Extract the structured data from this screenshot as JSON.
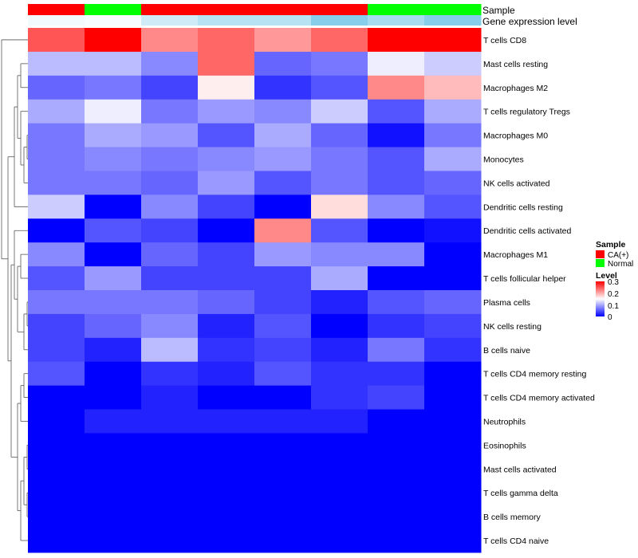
{
  "chart_data": {
    "type": "heatmap",
    "title": "",
    "annotation_labels": {
      "sample": "Sample",
      "gene": "Gene expression level"
    },
    "columns": [
      {
        "sample": "CA(+)",
        "gene_level": 0.03
      },
      {
        "sample": "Normal",
        "gene_level": 0.02
      },
      {
        "sample": "CA(+)",
        "gene_level": 0.12
      },
      {
        "sample": "CA(+)",
        "gene_level": 0.18
      },
      {
        "sample": "CA(+)",
        "gene_level": 0.18
      },
      {
        "sample": "CA(+)",
        "gene_level": 0.3
      },
      {
        "sample": "Normal",
        "gene_level": 0.22
      },
      {
        "sample": "Normal",
        "gene_level": 0.3
      }
    ],
    "rows": [
      {
        "name": "T cells CD8",
        "values": [
          0.25,
          0.3,
          0.22,
          0.24,
          0.21,
          0.24,
          0.3,
          0.3
        ]
      },
      {
        "name": "Mast cells resting",
        "values": [
          0.11,
          0.11,
          0.08,
          0.24,
          0.06,
          0.07,
          0.14,
          0.12
        ]
      },
      {
        "name": "Macrophages M2",
        "values": [
          0.06,
          0.07,
          0.04,
          0.16,
          0.03,
          0.05,
          0.22,
          0.19
        ]
      },
      {
        "name": "T cells regulatory  Tregs",
        "values": [
          0.1,
          0.14,
          0.07,
          0.09,
          0.08,
          0.12,
          0.05,
          0.1
        ]
      },
      {
        "name": "Macrophages M0",
        "values": [
          0.07,
          0.1,
          0.09,
          0.05,
          0.1,
          0.06,
          0.01,
          0.07
        ]
      },
      {
        "name": "Monocytes",
        "values": [
          0.07,
          0.08,
          0.07,
          0.08,
          0.09,
          0.07,
          0.05,
          0.1
        ]
      },
      {
        "name": "NK cells activated",
        "values": [
          0.07,
          0.07,
          0.06,
          0.09,
          0.05,
          0.07,
          0.05,
          0.06
        ]
      },
      {
        "name": "Dendritic cells resting",
        "values": [
          0.12,
          0.0,
          0.08,
          0.04,
          0.0,
          0.17,
          0.08,
          0.05
        ]
      },
      {
        "name": "Dendritic cells activated",
        "values": [
          0.0,
          0.05,
          0.04,
          0.0,
          0.22,
          0.05,
          0.0,
          0.01
        ]
      },
      {
        "name": "Macrophages M1",
        "values": [
          0.08,
          0.0,
          0.06,
          0.04,
          0.09,
          0.08,
          0.08,
          0.0
        ]
      },
      {
        "name": "T cells follicular helper",
        "values": [
          0.05,
          0.09,
          0.04,
          0.04,
          0.04,
          0.1,
          0.0,
          0.0
        ]
      },
      {
        "name": "Plasma cells",
        "values": [
          0.07,
          0.07,
          0.07,
          0.06,
          0.04,
          0.02,
          0.05,
          0.06
        ]
      },
      {
        "name": "NK cells resting",
        "values": [
          0.04,
          0.06,
          0.08,
          0.02,
          0.05,
          0.0,
          0.03,
          0.04
        ]
      },
      {
        "name": "B cells naive",
        "values": [
          0.04,
          0.02,
          0.11,
          0.03,
          0.04,
          0.02,
          0.07,
          0.03
        ]
      },
      {
        "name": "T cells CD4 memory resting",
        "values": [
          0.05,
          0.0,
          0.03,
          0.02,
          0.05,
          0.03,
          0.03,
          0.0
        ]
      },
      {
        "name": "T cells CD4 memory activated",
        "values": [
          0.0,
          0.0,
          0.02,
          0.0,
          0.0,
          0.03,
          0.04,
          0.0
        ]
      },
      {
        "name": "Neutrophils",
        "values": [
          0.0,
          0.02,
          0.02,
          0.02,
          0.02,
          0.02,
          0.0,
          0.0
        ]
      },
      {
        "name": "Eosinophils",
        "values": [
          0.0,
          0.0,
          0.0,
          0.0,
          0.0,
          0.0,
          0.0,
          0.0
        ]
      },
      {
        "name": "Mast cells activated",
        "values": [
          0.0,
          0.0,
          0.0,
          0.0,
          0.0,
          0.0,
          0.0,
          0.0
        ]
      },
      {
        "name": "T cells gamma delta",
        "values": [
          0.0,
          0.0,
          0.0,
          0.0,
          0.0,
          0.0,
          0.0,
          0.0
        ]
      },
      {
        "name": "B cells memory",
        "values": [
          0.0,
          0.0,
          0.0,
          0.0,
          0.0,
          0.0,
          0.0,
          0.0
        ]
      },
      {
        "name": "T cells CD4 naive",
        "values": [
          0.0,
          0.0,
          0.0,
          0.0,
          0.0,
          0.0,
          0.0,
          0.0
        ]
      }
    ],
    "color_scale": {
      "range": [
        0,
        0.3
      ],
      "low": "#0000ff",
      "mid": "#ffffff",
      "high": "#ff0000"
    },
    "gene_level_colors": {
      "low": "#ffffff",
      "high": "#87ceeb"
    },
    "legend": {
      "sample": {
        "title": "Sample",
        "entries": [
          {
            "label": "CA(+)",
            "color": "#ff0000"
          },
          {
            "label": "Normal",
            "color": "#00ff00"
          }
        ]
      },
      "level": {
        "title": "Level",
        "ticks": [
          {
            "label": "0.3",
            "value": 0.3
          },
          {
            "label": "0.2",
            "value": 0.2
          },
          {
            "label": "0.1",
            "value": 0.1
          },
          {
            "label": "0",
            "value": 0
          }
        ]
      },
      "placement": "right"
    },
    "dendrogram": "rows"
  }
}
